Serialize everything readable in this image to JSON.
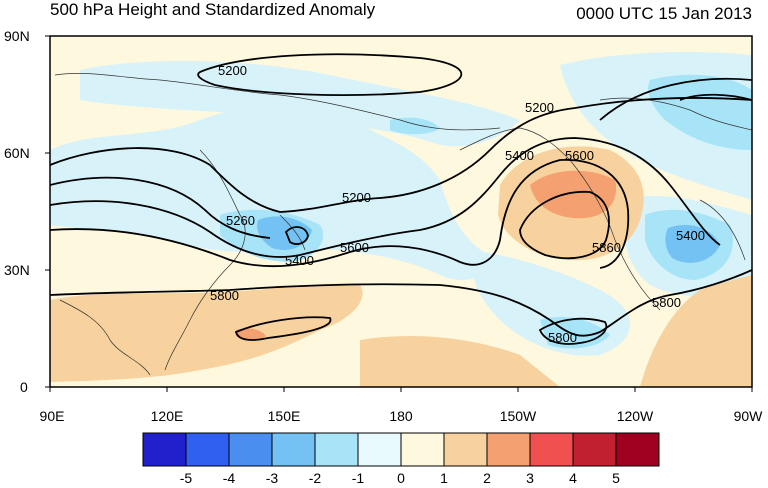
{
  "title": "500 hPa Height and Standardized Anomaly",
  "valid_time": "0000 UTC 15 Jan 2013",
  "y_axis_labels": [
    "90N",
    "60N",
    "30N",
    "0"
  ],
  "x_axis_labels": [
    "90E",
    "120E",
    "150E",
    "180",
    "150W",
    "120W",
    "90W"
  ],
  "contour_labels": [
    "5200",
    "5200",
    "5200",
    "5260",
    "5400",
    "5400",
    "5600",
    "5600",
    "5800",
    "5800",
    "5800",
    "5860",
    "5400"
  ],
  "colorbar": {
    "labels": [
      "-5",
      "-4",
      "-3",
      "-2",
      "-1",
      "0",
      "1",
      "2",
      "3",
      "4",
      "5"
    ],
    "colors": [
      "#2020cc",
      "#3060f0",
      "#4a8ef0",
      "#74c2f4",
      "#a8e4f8",
      "#e8fafe",
      "#fdf8de",
      "#f8d29e",
      "#f4a070",
      "#f05050",
      "#c02030",
      "#a00020"
    ]
  },
  "map_colors": {
    "background": "#fdf8de",
    "neg1": "#d8f2fa",
    "neg2": "#a8e4f8",
    "neg3": "#74c2f4",
    "pos1": "#f8d29e",
    "pos2": "#f4a070"
  }
}
